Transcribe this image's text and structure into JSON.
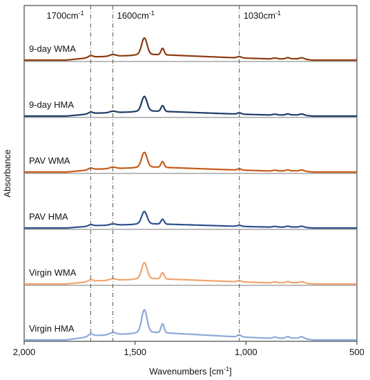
{
  "chart_data": {
    "type": "line",
    "xlabel": "Wavenumbers [cm",
    "xlabel_sup": "-1",
    "xlabel_end": "]",
    "ylabel": "Absorbance",
    "xlim": [
      2000,
      500
    ],
    "x_reversed": true,
    "xticks": [
      {
        "value": 2000,
        "label": "2,000"
      },
      {
        "value": 1500,
        "label": "1,500"
      },
      {
        "value": 1000,
        "label": "1,000"
      },
      {
        "value": 500,
        "label": "500"
      }
    ],
    "reference_lines": [
      {
        "value": 1700,
        "text": "1700cm",
        "sup": "-1"
      },
      {
        "value": 1600,
        "text": "1600cm",
        "sup": "-1"
      },
      {
        "value": 1030,
        "text": "1030cm",
        "sup": "-1"
      }
    ],
    "stacked": true,
    "series": [
      {
        "name": "9-day WMA",
        "color": "#8B3A0E",
        "scale": 0.7
      },
      {
        "name": "9-day HMA",
        "color": "#1F3A66",
        "scale": 0.62
      },
      {
        "name": "PAV WMA",
        "color": "#C55A17",
        "scale": 0.62
      },
      {
        "name": "PAV HMA",
        "color": "#2B4F8C",
        "scale": 0.52
      },
      {
        "name": "Virgin WMA",
        "color": "#F0A46E",
        "scale": 0.67
      },
      {
        "name": "Virgin HMA",
        "color": "#8EA9D8",
        "scale": 0.95
      }
    ],
    "spectrum_shape": {
      "baseline_points": [
        [
          2000,
          0
        ],
        [
          1810,
          0
        ],
        [
          1770,
          0.04
        ],
        [
          1730,
          0.08
        ],
        [
          1700,
          0.14
        ],
        [
          1650,
          0.15
        ],
        [
          1520,
          0.2
        ],
        [
          1470,
          0.26
        ],
        [
          1400,
          0.24
        ],
        [
          1300,
          0.2
        ],
        [
          1200,
          0.16
        ],
        [
          1100,
          0.12
        ],
        [
          1040,
          0.1
        ],
        [
          950,
          0.07
        ],
        [
          880,
          0.05
        ],
        [
          780,
          0.06
        ],
        [
          730,
          0.03
        ],
        [
          700,
          0.0
        ],
        [
          500,
          0
        ]
      ],
      "peaks": [
        {
          "center": 1700,
          "height": 0.06,
          "width": 9
        },
        {
          "center": 1600,
          "height": 0.07,
          "width": 14
        },
        {
          "center": 1458,
          "height": 0.7,
          "width": 12
        },
        {
          "center": 1376,
          "height": 0.28,
          "width": 7
        },
        {
          "center": 1030,
          "height": 0.06,
          "width": 9
        },
        {
          "center": 870,
          "height": 0.04,
          "width": 10
        },
        {
          "center": 812,
          "height": 0.05,
          "width": 8
        },
        {
          "center": 748,
          "height": 0.06,
          "width": 10
        }
      ]
    }
  }
}
